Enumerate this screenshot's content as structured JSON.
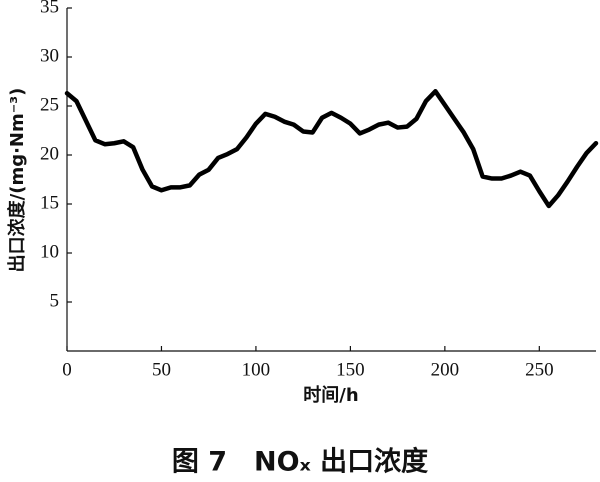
{
  "chart_data": {
    "type": "line",
    "y_label": "出口浓度/(mg·Nm⁻³)",
    "x_label": "时间/h",
    "caption": "图 7　NOₓ 出口浓度",
    "x": [
      0,
      5,
      10,
      15,
      20,
      25,
      30,
      35,
      40,
      45,
      50,
      55,
      60,
      65,
      70,
      75,
      80,
      85,
      90,
      95,
      100,
      105,
      110,
      115,
      120,
      125,
      130,
      135,
      140,
      145,
      150,
      155,
      160,
      165,
      170,
      175,
      180,
      185,
      190,
      195,
      200,
      205,
      210,
      215,
      220,
      225,
      230,
      235,
      240,
      245,
      250,
      255,
      260,
      265,
      270,
      275,
      280
    ],
    "series": [
      {
        "color": "#000000",
        "values": [
          26.3,
          25.5,
          23.5,
          21.5,
          21.1,
          21.2,
          21.4,
          20.8,
          18.5,
          16.8,
          16.4,
          16.7,
          16.7,
          16.9,
          18.0,
          18.5,
          19.7,
          20.1,
          20.6,
          21.8,
          23.2,
          24.2,
          23.9,
          23.4,
          23.1,
          22.4,
          22.3,
          23.8,
          24.3,
          23.8,
          23.2,
          22.2,
          22.6,
          23.1,
          23.3,
          22.8,
          22.9,
          23.7,
          25.5,
          26.5,
          25.1,
          23.7,
          22.3,
          20.6,
          17.8,
          17.6,
          17.6,
          17.9,
          18.3,
          17.9,
          16.3,
          14.8,
          15.9,
          17.3,
          18.8,
          20.2,
          21.2
        ]
      }
    ],
    "xlim": [
      0,
      280
    ],
    "xticks": [
      0,
      50,
      100,
      150,
      200,
      250
    ],
    "ylim": [
      0,
      35
    ],
    "yticks": [
      5,
      10,
      15,
      20,
      25,
      30,
      35
    ]
  }
}
